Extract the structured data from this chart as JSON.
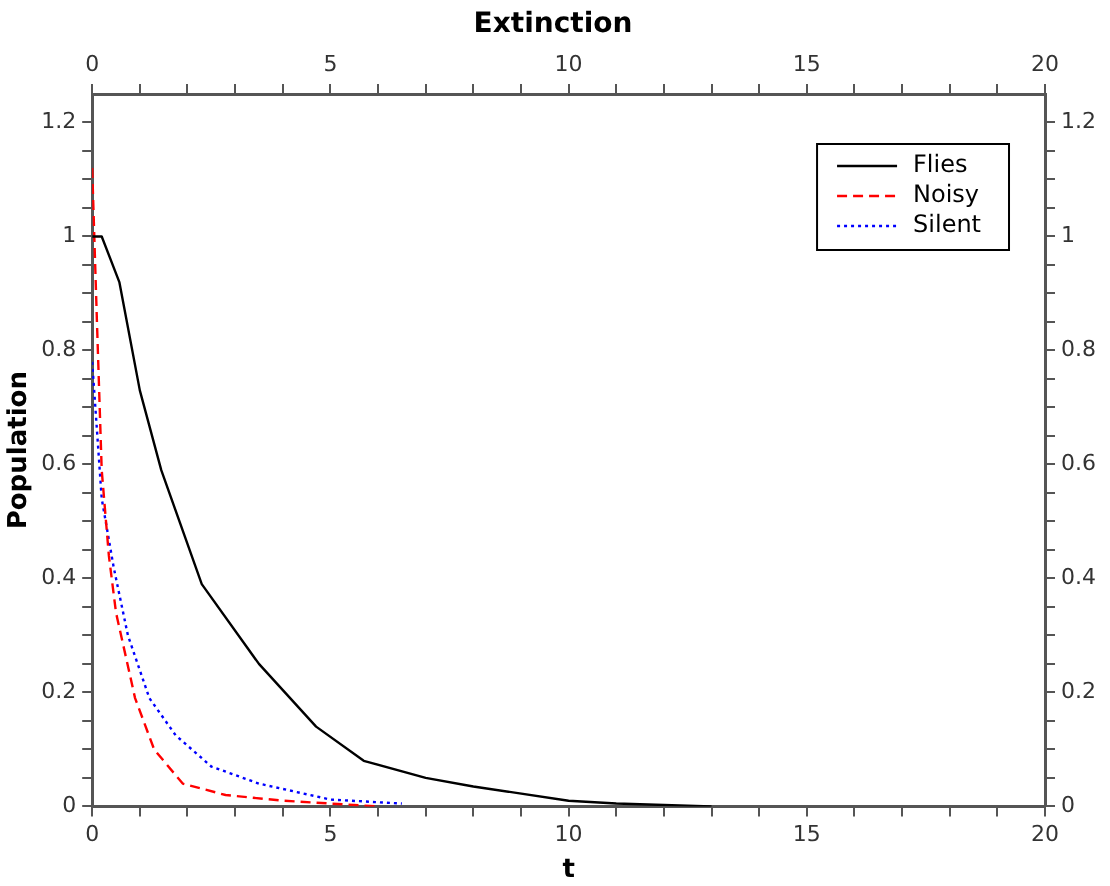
{
  "chart_data": {
    "type": "line",
    "title": "Extinction",
    "xlabel": "t",
    "ylabel": "Population",
    "xlim": [
      0,
      20
    ],
    "xticks": [
      0,
      {
        "value": 1,
        "label": null
      },
      {
        "value": 2,
        "label": null
      },
      {
        "value": 3,
        "label": null
      },
      {
        "value": 4,
        "label": null
      },
      5,
      {
        "value": 6,
        "label": null
      },
      {
        "value": 7,
        "label": null
      },
      {
        "value": 8,
        "label": null
      },
      {
        "value": 9,
        "label": null
      },
      10,
      {
        "value": 11,
        "label": null
      },
      {
        "value": 12,
        "label": null
      },
      {
        "value": 13,
        "label": null
      },
      {
        "value": 14,
        "label": null
      },
      15,
      {
        "value": 16,
        "label": null
      },
      {
        "value": 17,
        "label": null
      },
      {
        "value": 18,
        "label": null
      },
      {
        "value": 19,
        "label": null
      },
      20
    ],
    "x2lim": [
      0,
      20
    ],
    "x2ticks": [
      0,
      {
        "value": 1,
        "label": null
      },
      {
        "value": 2,
        "label": null
      },
      {
        "value": 3,
        "label": null
      },
      {
        "value": 4,
        "label": null
      },
      5,
      {
        "value": 6,
        "label": null
      },
      {
        "value": 7,
        "label": null
      },
      {
        "value": 8,
        "label": null
      },
      {
        "value": 9,
        "label": null
      },
      10,
      {
        "value": 11,
        "label": null
      },
      {
        "value": 12,
        "label": null
      },
      {
        "value": 13,
        "label": null
      },
      {
        "value": 14,
        "label": null
      },
      15,
      {
        "value": 16,
        "label": null
      },
      {
        "value": 17,
        "label": null
      },
      {
        "value": 18,
        "label": null
      },
      {
        "value": 19,
        "label": null
      },
      20
    ],
    "ylim": [
      0,
      1.25
    ],
    "yticks": [
      0,
      {
        "value": 0.05,
        "label": null
      },
      {
        "value": 0.1,
        "label": null
      },
      {
        "value": 0.15,
        "label": null
      },
      0.2,
      {
        "value": 0.25,
        "label": null
      },
      {
        "value": 0.3,
        "label": null
      },
      {
        "value": 0.35,
        "label": null
      },
      0.4,
      {
        "value": 0.45,
        "label": null
      },
      {
        "value": 0.5,
        "label": null
      },
      {
        "value": 0.55,
        "label": null
      },
      0.6,
      {
        "value": 0.65,
        "label": null
      },
      {
        "value": 0.7,
        "label": null
      },
      {
        "value": 0.75,
        "label": null
      },
      0.8,
      {
        "value": 0.85,
        "label": null
      },
      {
        "value": 0.9,
        "label": null
      },
      {
        "value": 0.95,
        "label": null
      },
      1,
      {
        "value": 1.05,
        "label": null
      },
      {
        "value": 1.1,
        "label": null
      },
      {
        "value": 1.15,
        "label": null
      },
      1.2
    ],
    "y2lim": [
      0,
      1.25
    ],
    "y2ticks": [
      0,
      {
        "value": 0.05,
        "label": null
      },
      {
        "value": 0.1,
        "label": null
      },
      {
        "value": 0.15,
        "label": null
      },
      0.2,
      {
        "value": 0.25,
        "label": null
      },
      {
        "value": 0.3,
        "label": null
      },
      {
        "value": 0.35,
        "label": null
      },
      0.4,
      {
        "value": 0.45,
        "label": null
      },
      {
        "value": 0.5,
        "label": null
      },
      {
        "value": 0.55,
        "label": null
      },
      0.6,
      {
        "value": 0.65,
        "label": null
      },
      {
        "value": 0.7,
        "label": null
      },
      {
        "value": 0.75,
        "label": null
      },
      0.8,
      {
        "value": 0.85,
        "label": null
      },
      {
        "value": 0.9,
        "label": null
      },
      {
        "value": 0.95,
        "label": null
      },
      1,
      {
        "value": 1.05,
        "label": null
      },
      {
        "value": 1.1,
        "label": null
      },
      {
        "value": 1.15,
        "label": null
      },
      1.2
    ],
    "grid": false,
    "legend": "top right",
    "marker": "none",
    "series": [
      {
        "name": "Flies",
        "color": "#000000",
        "line_style": "solid",
        "x": [
          0,
          0.2,
          0.57,
          1,
          1.45,
          2.3,
          3.5,
          4.7,
          5.7,
          7,
          8,
          10,
          11,
          13
        ],
        "values": [
          1,
          1,
          0.92,
          0.73,
          0.59,
          0.39,
          0.25,
          0.14,
          0.08,
          0.05,
          0.035,
          0.01,
          0.005,
          0
        ]
      },
      {
        "name": "Noisy",
        "color": "#ff0000",
        "line_style": "dashed",
        "x": [
          0,
          0.1,
          0.2,
          0.35,
          0.5,
          0.9,
          1.3,
          1.9,
          2.8,
          4,
          6
        ],
        "values": [
          1.12,
          0.85,
          0.59,
          0.44,
          0.34,
          0.19,
          0.1,
          0.04,
          0.02,
          0.01,
          0
        ]
      },
      {
        "name": "Silent",
        "color": "#0000ff",
        "line_style": "dotted",
        "x": [
          0,
          0.1,
          0.2,
          0.45,
          0.75,
          1.2,
          1.75,
          2.5,
          3.5,
          5,
          6.5
        ],
        "values": [
          0.78,
          0.66,
          0.54,
          0.42,
          0.3,
          0.19,
          0.125,
          0.07,
          0.04,
          0.012,
          0.005
        ]
      }
    ]
  }
}
